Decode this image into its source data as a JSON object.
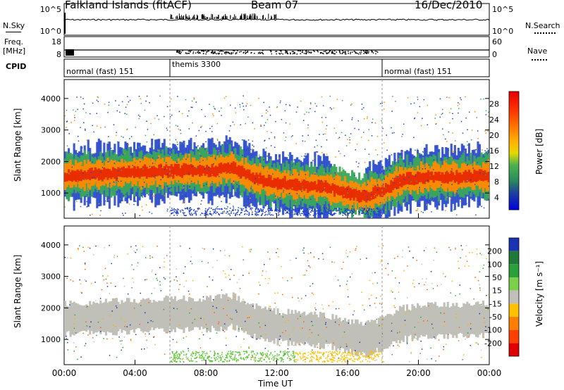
{
  "header": {
    "site": "Falkland Islands (fitACF)",
    "beam": "Beam 07",
    "date": "16/Dec/2010"
  },
  "side_labels": {
    "nsky": "N.Sky",
    "freq_line1": "Freq.",
    "freq_line2": "[MHz]",
    "cpid": "CPID",
    "nsearch": "N.Search",
    "nave": "Nave"
  },
  "chart_data": [
    {
      "type": "line",
      "name": "N.Sky / N.Search noise",
      "y_ticks_left": [
        "10^5",
        "10^0"
      ],
      "y_ticks_right": [
        "10^5",
        "10^0"
      ]
    },
    {
      "type": "line",
      "name": "Freq / Nave",
      "y_ticks_left": [
        "18",
        "8"
      ],
      "y_ticks_right": [
        "60",
        "0"
      ]
    },
    {
      "type": "timeline",
      "name": "CPID",
      "segments": [
        {
          "label": "normal (fast) 151",
          "start_h": 0,
          "end_h": 6
        },
        {
          "label": "themis 3300",
          "start_h": 6,
          "end_h": 18
        },
        {
          "label": "normal (fast) 151",
          "start_h": 18,
          "end_h": 24
        }
      ]
    },
    {
      "type": "heatmap",
      "name": "Power",
      "ylabel": "Slant Range [km]",
      "y_ticks": [
        1000,
        2000,
        3000,
        4000
      ],
      "ylim": [
        200,
        4600
      ],
      "colorbar_label": "Power [dB]",
      "colorbar_ticks": [
        "28",
        "24",
        "20",
        "16",
        "12",
        "8",
        "4"
      ],
      "colorbar_colors": [
        "#e50000",
        "#ff3000",
        "#ff7700",
        "#ffb000",
        "#e8d800",
        "#4db34d",
        "#2a8c5a",
        "#1e3fa0",
        "#0000e0"
      ]
    },
    {
      "type": "heatmap",
      "name": "Velocity",
      "ylabel": "Slant Range [km]",
      "y_ticks": [
        1000,
        2000,
        3000,
        4000
      ],
      "ylim": [
        200,
        4600
      ],
      "colorbar_label": "Velocity [m s⁻¹]",
      "colorbar_ticks": [
        "200",
        "100",
        "50",
        "15",
        "-15",
        "-50",
        "-100",
        "-200"
      ],
      "colorbar_colors": [
        "#1a33b3",
        "#1f7a3a",
        "#2aa03a",
        "#7ad04a",
        "#c0c0b8",
        "#ffc000",
        "#ff8000",
        "#ff4000",
        "#e00000"
      ]
    }
  ],
  "x_axis": {
    "ticks": [
      "00:00",
      "04:00",
      "08:00",
      "12:00",
      "16:00",
      "20:00",
      "00:00"
    ],
    "label": "Time UT"
  },
  "colors": {
    "power_core": "#e82a00",
    "power_orange": "#ff8a00",
    "power_green": "#3aa85a",
    "power_blue": "#1a3cc8",
    "vel_grey": "#c0c0b8",
    "vel_green": "#5fc83a"
  }
}
